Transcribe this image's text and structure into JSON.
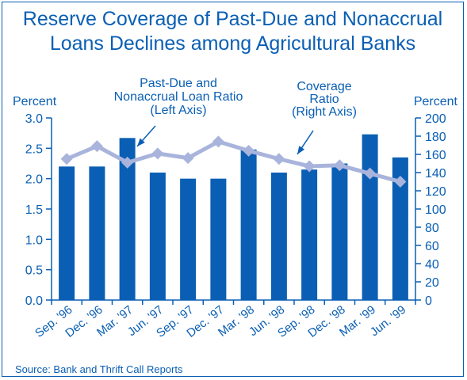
{
  "chart_data": {
    "type": "bar",
    "title": "Reserve Coverage of Past-Due and Nonaccrual\nLoans Declines among Agricultural Banks",
    "source": "Source: Bank and Thrift Call Reports",
    "categories": [
      "Sep. '96",
      "Dec. '96",
      "Mar. '97",
      "Jun. '97",
      "Sep. '97",
      "Dec. '97",
      "Mar. '98",
      "Jun. '98",
      "Sep. '98",
      "Dec. '98",
      "Mar. '99",
      "Jun. '99"
    ],
    "left_axis": {
      "label": "Percent",
      "ylim": [
        0,
        3.0
      ],
      "ticks": [
        "0.0",
        "0.5",
        "1.0",
        "1.5",
        "2.0",
        "2.5",
        "3.0"
      ]
    },
    "right_axis": {
      "label": "Percent",
      "ylim": [
        0,
        200
      ],
      "ticks": [
        "0",
        "20",
        "40",
        "60",
        "80",
        "100",
        "120",
        "140",
        "160",
        "180",
        "200"
      ]
    },
    "series": [
      {
        "type": "bar",
        "axis": "left",
        "values": [
          2.2,
          2.2,
          2.67,
          2.1,
          2.0,
          2.0,
          2.48,
          2.1,
          2.15,
          2.25,
          2.73,
          2.35
        ],
        "color": "#0a5fb4"
      },
      {
        "type": "line",
        "axis": "right",
        "values": [
          155,
          169,
          151,
          161,
          156,
          174,
          164,
          155,
          147,
          148,
          139,
          130
        ],
        "color": "#a9b4dc"
      }
    ],
    "annotations": [
      {
        "text": "Past-Due and\nNonaccrual Loan Ratio\n(Left Axis)"
      },
      {
        "text": "Coverage\nRatio\n(Right Axis)"
      }
    ],
    "grid": false
  }
}
